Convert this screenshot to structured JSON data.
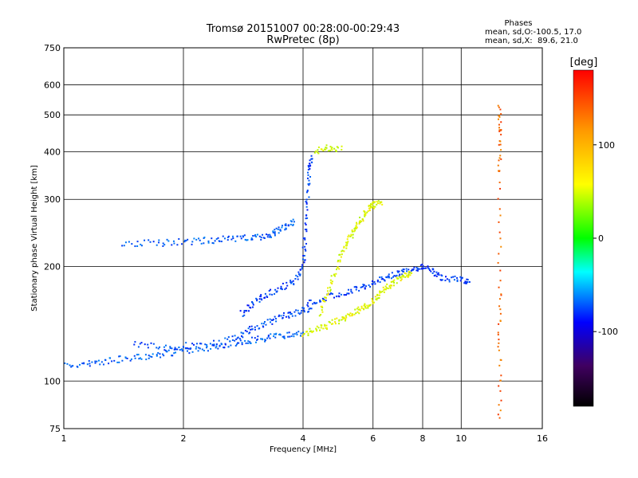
{
  "chart_data": {
    "type": "scatter",
    "title": "Tromsø 20151007 00:28:00-00:29:43",
    "subtitle": "RwPretec (8p)",
    "xlabel": "Frequency [MHz]",
    "ylabel": "Stationary phase Virtual Height [km]",
    "x_scale": "log",
    "y_scale": "log",
    "xlim": [
      1,
      16
    ],
    "ylim": [
      75,
      750
    ],
    "x_ticks": [
      1,
      2,
      4,
      6,
      8,
      10,
      16
    ],
    "x_tick_labels": [
      "1",
      "2",
      "4",
      "6",
      "8",
      "10",
      "16"
    ],
    "y_ticks": [
      75,
      100,
      200,
      300,
      400,
      500,
      600,
      750
    ],
    "y_tick_labels": [
      "75",
      "100",
      "200",
      "300",
      "400",
      "500",
      "600",
      "750"
    ],
    "grid": true,
    "annotation": {
      "heading": "Phases",
      "line_o": "mean, sd,O:-100.5, 17.0",
      "line_x": "mean, sd,X:  89.6, 21.0"
    },
    "colorbar": {
      "label": "[deg]",
      "range": [
        -180,
        180
      ],
      "ticks": [
        100,
        0,
        -100
      ],
      "tick_labels": [
        "100",
        "0",
        "-100"
      ]
    },
    "traces": [
      {
        "name": "",
        "phase": -100,
        "points": [
          [
            1.0,
            110
          ],
          [
            1.15,
            111
          ],
          [
            1.3,
            113
          ],
          [
            1.5,
            115
          ],
          [
            1.7,
            117
          ],
          [
            1.9,
            119
          ],
          [
            2.1,
            121
          ],
          [
            2.4,
            123
          ],
          [
            2.7,
            126
          ],
          [
            3.0,
            128
          ],
          [
            3.3,
            130
          ],
          [
            3.6,
            132
          ],
          [
            4.0,
            134
          ]
        ]
      },
      {
        "name": "",
        "phase": -105,
        "points": [
          [
            1.5,
            125
          ],
          [
            1.8,
            123
          ],
          [
            2.1,
            124
          ],
          [
            2.5,
            126
          ],
          [
            2.8,
            132
          ],
          [
            3.0,
            138
          ],
          [
            3.3,
            143
          ],
          [
            3.6,
            148
          ],
          [
            3.9,
            152
          ],
          [
            4.2,
            155
          ]
        ]
      },
      {
        "name": "",
        "phase": -110,
        "points": [
          [
            2.8,
            150
          ],
          [
            3.0,
            160
          ],
          [
            3.2,
            168
          ],
          [
            3.5,
            175
          ],
          [
            3.8,
            182
          ],
          [
            4.0,
            200
          ],
          [
            4.05,
            240
          ],
          [
            4.1,
            300
          ],
          [
            4.15,
            360
          ],
          [
            4.2,
            390
          ]
        ]
      },
      {
        "name": "",
        "phase": -100,
        "points": [
          [
            1.4,
            230
          ],
          [
            1.7,
            230
          ],
          [
            2.0,
            232
          ],
          [
            2.3,
            234
          ],
          [
            2.6,
            236
          ],
          [
            2.9,
            238
          ],
          [
            3.2,
            240
          ],
          [
            3.4,
            245
          ],
          [
            3.6,
            255
          ],
          [
            3.8,
            262
          ]
        ]
      },
      {
        "name": "",
        "phase": -110,
        "points": [
          [
            4.1,
            160
          ],
          [
            4.5,
            165
          ],
          [
            5.0,
            170
          ],
          [
            5.5,
            175
          ],
          [
            6.0,
            180
          ],
          [
            6.5,
            188
          ],
          [
            7.0,
            192
          ],
          [
            7.5,
            196
          ],
          [
            8.0,
            200
          ],
          [
            8.5,
            195
          ],
          [
            9.0,
            185
          ],
          [
            10.0,
            185
          ],
          [
            10.5,
            182
          ]
        ]
      },
      {
        "name": "",
        "phase": 95,
        "points": [
          [
            4.0,
            132
          ],
          [
            4.3,
            136
          ],
          [
            4.6,
            140
          ],
          [
            5.0,
            145
          ],
          [
            5.3,
            150
          ],
          [
            5.6,
            155
          ],
          [
            5.9,
            160
          ],
          [
            6.2,
            168
          ],
          [
            6.5,
            175
          ],
          [
            6.8,
            182
          ],
          [
            7.2,
            188
          ],
          [
            7.5,
            192
          ]
        ]
      },
      {
        "name": "",
        "phase": 95,
        "points": [
          [
            4.4,
            150
          ],
          [
            4.6,
            170
          ],
          [
            4.8,
            190
          ],
          [
            5.0,
            215
          ],
          [
            5.2,
            235
          ],
          [
            5.4,
            250
          ],
          [
            5.6,
            265
          ],
          [
            5.8,
            280
          ],
          [
            6.0,
            290
          ],
          [
            6.3,
            295
          ]
        ]
      },
      {
        "name": "",
        "phase": 90,
        "points": [
          [
            4.3,
            400
          ],
          [
            4.6,
            410
          ],
          [
            5.0,
            405
          ]
        ]
      },
      {
        "name": "",
        "phase": 150,
        "points": [
          [
            12.5,
            520
          ],
          [
            12.5,
            450
          ],
          [
            12.5,
            350
          ],
          [
            12.5,
            175
          ],
          [
            12.5,
            122
          ],
          [
            12.5,
            80
          ]
        ]
      }
    ]
  }
}
